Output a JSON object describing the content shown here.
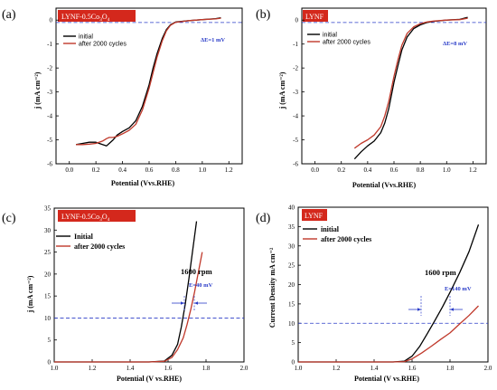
{
  "colors": {
    "initial": "#000000",
    "after": "#c0392b",
    "tag_bg": "#d4281c",
    "ref_line": "#2a3cc8"
  },
  "chart_data": [
    {
      "id": "a",
      "type": "line",
      "panel_letter": "(a)",
      "tag": "LYNF-0.5Co3O4",
      "tag_main": "LYNF-0.5Co",
      "tag_sub1": "3",
      "tag_mid": "O",
      "tag_sub2": "4",
      "xlabel": "Potential (Vvs.RHE)",
      "ylabel": "j (mA cm⁻²)",
      "xlim": [
        -0.1,
        1.3
      ],
      "ylim": [
        -6,
        0.5
      ],
      "xticks": [
        "0.0",
        "0.2",
        "0.4",
        "0.6",
        "0.8",
        "1.0",
        "1.2"
      ],
      "yticks": [
        "-6",
        "-5",
        "-4",
        "-3",
        "-2",
        "-1",
        "0"
      ],
      "ref_y": -0.1,
      "legend": "top-left",
      "annotation": "ΔE=1 mV",
      "series": [
        {
          "name": "initial",
          "key": "initial",
          "x": [
            0.05,
            0.1,
            0.15,
            0.2,
            0.25,
            0.28,
            0.3,
            0.33,
            0.36,
            0.4,
            0.45,
            0.5,
            0.55,
            0.6,
            0.63,
            0.66,
            0.7,
            0.73,
            0.76,
            0.8,
            0.9,
            1.0,
            1.1,
            1.14
          ],
          "y": [
            -5.2,
            -5.15,
            -5.1,
            -5.1,
            -5.2,
            -5.25,
            -5.15,
            -5.0,
            -4.8,
            -4.65,
            -4.5,
            -4.2,
            -3.6,
            -2.7,
            -2.0,
            -1.4,
            -0.75,
            -0.4,
            -0.2,
            -0.08,
            -0.02,
            0.02,
            0.06,
            0.1
          ]
        },
        {
          "name": "after 2000 cycles",
          "key": "after",
          "x": [
            0.05,
            0.1,
            0.15,
            0.2,
            0.25,
            0.28,
            0.3,
            0.33,
            0.36,
            0.4,
            0.45,
            0.5,
            0.55,
            0.6,
            0.63,
            0.66,
            0.7,
            0.73,
            0.76,
            0.8,
            0.9,
            1.0,
            1.1,
            1.14
          ],
          "y": [
            -5.2,
            -5.2,
            -5.18,
            -5.15,
            -5.05,
            -4.95,
            -4.9,
            -4.9,
            -4.85,
            -4.75,
            -4.6,
            -4.35,
            -3.75,
            -2.85,
            -2.2,
            -1.55,
            -0.85,
            -0.45,
            -0.22,
            -0.09,
            -0.02,
            0.02,
            0.05,
            0.08
          ]
        }
      ]
    },
    {
      "id": "b",
      "type": "line",
      "panel_letter": "(b)",
      "tag": "LYNF",
      "xlabel": "Potential (Vvs.RHE)",
      "ylabel": "j (mA cm⁻²)",
      "xlim": [
        -0.1,
        1.3
      ],
      "ylim": [
        -6,
        0.5
      ],
      "xticks": [
        "0.0",
        "0.2",
        "0.4",
        "0.6",
        "0.8",
        "1.0",
        "1.2"
      ],
      "yticks": [
        "-6",
        "-5",
        "-4",
        "-3",
        "-2",
        "-1",
        "0"
      ],
      "ref_y": -0.1,
      "legend": "top-left",
      "annotation": "ΔE=8 mV",
      "series": [
        {
          "name": "initial",
          "key": "initial",
          "x": [
            0.3,
            0.35,
            0.4,
            0.45,
            0.5,
            0.53,
            0.56,
            0.6,
            0.63,
            0.66,
            0.7,
            0.75,
            0.8,
            0.85,
            0.9,
            1.0,
            1.1,
            1.16
          ],
          "y": [
            -5.8,
            -5.5,
            -5.25,
            -5.05,
            -4.7,
            -4.3,
            -3.7,
            -2.6,
            -1.9,
            -1.25,
            -0.7,
            -0.35,
            -0.2,
            -0.1,
            -0.05,
            0.0,
            0.03,
            0.12
          ]
        },
        {
          "name": "after 2000 cycles",
          "key": "after",
          "x": [
            0.3,
            0.35,
            0.4,
            0.45,
            0.5,
            0.53,
            0.56,
            0.6,
            0.63,
            0.66,
            0.7,
            0.75,
            0.8,
            0.85,
            0.9,
            1.0,
            1.1,
            1.16
          ],
          "y": [
            -5.35,
            -5.15,
            -5.0,
            -4.8,
            -4.45,
            -4.0,
            -3.4,
            -2.35,
            -1.65,
            -1.05,
            -0.55,
            -0.28,
            -0.15,
            -0.08,
            -0.04,
            0.0,
            0.02,
            0.08
          ]
        }
      ]
    },
    {
      "id": "c",
      "type": "line",
      "panel_letter": "(c)",
      "tag": "LYNF-0.5Co3O4",
      "tag_main": "LYNF-0.5Co",
      "tag_sub1": "3",
      "tag_mid": "O",
      "tag_sub2": "4",
      "xlabel": "Potential (V vs.RHE)",
      "ylabel": "j (mA cm⁻²)",
      "xlim": [
        1.0,
        2.0
      ],
      "ylim": [
        0,
        35
      ],
      "xticks": [
        "1.0",
        "1.2",
        "1.4",
        "1.6",
        "1.8",
        "2.0"
      ],
      "yticks": [
        "0",
        "5",
        "10",
        "15",
        "20",
        "25",
        "30",
        "35"
      ],
      "ref_y": 10,
      "legend": "top-left",
      "rpm_label": "1600 rpm",
      "annotation": "E=40 mV",
      "series": [
        {
          "name": "Initial",
          "key": "initial",
          "x": [
            1.0,
            1.5,
            1.58,
            1.62,
            1.65,
            1.67,
            1.69,
            1.71,
            1.73,
            1.75
          ],
          "y": [
            0,
            0,
            0.2,
            1.5,
            4.0,
            8.0,
            13.0,
            19.0,
            25.5,
            32.0
          ]
        },
        {
          "name": "after 2000 cycles",
          "key": "after",
          "x": [
            1.0,
            1.5,
            1.58,
            1.62,
            1.65,
            1.68,
            1.7,
            1.72,
            1.74,
            1.76,
            1.78
          ],
          "y": [
            0,
            0,
            0.15,
            1.0,
            2.8,
            5.5,
            8.5,
            12.0,
            16.0,
            20.5,
            25.0
          ]
        }
      ]
    },
    {
      "id": "d",
      "type": "line",
      "panel_letter": "(d)",
      "tag": "LYNF",
      "xlabel": "Potential (V vs.RHE)",
      "ylabel": "Current Density mA cm⁻²",
      "xlim": [
        1.0,
        2.0
      ],
      "ylim": [
        0,
        40
      ],
      "xticks": [
        "1.0",
        "1.2",
        "1.4",
        "1.6",
        "1.8",
        "2.0"
      ],
      "yticks": [
        "0",
        "5",
        "10",
        "15",
        "20",
        "25",
        "30",
        "35",
        "40"
      ],
      "ref_y": 10,
      "legend": "top-left",
      "rpm_label": "1600 rpm",
      "annotation": "E=140 mV",
      "series": [
        {
          "name": "initial",
          "key": "initial",
          "x": [
            1.0,
            1.5,
            1.56,
            1.6,
            1.64,
            1.68,
            1.72,
            1.76,
            1.8,
            1.85,
            1.9,
            1.95
          ],
          "y": [
            0,
            0,
            0.2,
            1.5,
            4.0,
            7.3,
            10.7,
            14.2,
            18.0,
            23.0,
            28.5,
            35.5
          ]
        },
        {
          "name": "after 2000 cycles",
          "key": "after",
          "x": [
            1.0,
            1.5,
            1.56,
            1.6,
            1.65,
            1.7,
            1.75,
            1.8,
            1.85,
            1.9,
            1.95
          ],
          "y": [
            0,
            0,
            0.1,
            0.8,
            2.3,
            4.0,
            5.8,
            7.5,
            9.8,
            12.0,
            14.5
          ]
        }
      ]
    }
  ]
}
